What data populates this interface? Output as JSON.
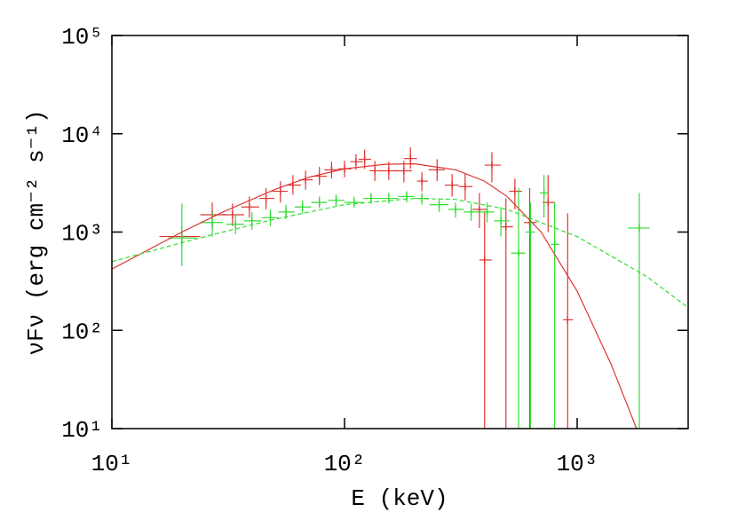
{
  "chart_data": {
    "type": "errorbar",
    "x_label": "E (keV)",
    "y_label": "νFν (erg cm⁻² s⁻¹)",
    "xlog": true,
    "ylog": true,
    "xlim": [
      10,
      3000
    ],
    "ylim": [
      10,
      100000
    ],
    "xticks": [
      {
        "value": 10,
        "label": "10¹"
      },
      {
        "value": 100,
        "label": "10²"
      },
      {
        "value": 1000,
        "label": "10³"
      }
    ],
    "yticks": [
      {
        "value": 10,
        "label": "10¹"
      },
      {
        "value": 100,
        "label": "10²"
      },
      {
        "value": 1000,
        "label": "10³"
      },
      {
        "value": 10000,
        "label": "10⁴"
      },
      {
        "value": 100000,
        "label": "10⁵"
      }
    ],
    "series": [
      {
        "kind": "points",
        "color": "#e03535",
        "x": [
          20,
          27,
          33,
          39,
          46,
          53,
          60,
          68,
          78,
          88,
          100,
          112,
          122,
          135,
          155,
          180,
          192,
          215,
          250,
          290,
          330,
          380,
          400,
          430,
          494,
          540,
          625,
          750,
          910
        ],
        "values": [
          900,
          1500,
          1500,
          1800,
          2200,
          2600,
          3000,
          3400,
          3700,
          4300,
          4400,
          5200,
          5500,
          4200,
          4200,
          4200,
          5600,
          3300,
          4300,
          3000,
          2900,
          1700,
          520,
          4800,
          1130,
          2600,
          1250,
          2000,
          128
        ],
        "x_low": [
          16,
          24,
          30,
          36,
          43,
          49,
          56,
          64,
          72,
          82,
          94,
          106,
          115,
          128,
          142,
          165,
          180,
          205,
          230,
          270,
          310,
          355,
          380,
          400,
          470,
          510,
          590,
          710,
          870
        ],
        "x_high": [
          24,
          31,
          37,
          43,
          50,
          57,
          65,
          73,
          84,
          95,
          107,
          120,
          130,
          145,
          170,
          195,
          205,
          228,
          270,
          310,
          355,
          410,
          430,
          470,
          530,
          580,
          670,
          800,
          960
        ],
        "y_low": [
          700,
          1100,
          1150,
          1400,
          1700,
          2000,
          2400,
          2700,
          3000,
          3500,
          3600,
          4300,
          4400,
          3300,
          3400,
          3200,
          4400,
          2600,
          3300,
          2300,
          2100,
          1100,
          1,
          3200,
          1,
          1700,
          1,
          1000,
          1
        ],
        "y_high": [
          1150,
          2000,
          1950,
          2300,
          2800,
          3300,
          3800,
          4200,
          4600,
          5200,
          5300,
          6200,
          6900,
          5300,
          5200,
          5300,
          7300,
          4100,
          5500,
          3900,
          3900,
          2500,
          1600,
          6500,
          2200,
          3500,
          2800,
          3800,
          1550
        ]
      },
      {
        "kind": "points",
        "color": "#33dd33",
        "x": [
          20,
          27,
          34,
          40,
          48,
          56,
          66,
          78,
          92,
          110,
          130,
          155,
          185,
          215,
          255,
          300,
          350,
          410,
          470,
          560,
          630,
          720,
          800,
          1850
        ],
        "values": [
          870,
          1250,
          1200,
          1300,
          1400,
          1600,
          1800,
          2000,
          2100,
          2000,
          2200,
          2200,
          2300,
          2200,
          1900,
          1700,
          1600,
          1600,
          1300,
          610,
          1000,
          2500,
          750,
          1100
        ],
        "x_low": [
          17.5,
          24,
          31,
          37,
          44,
          52,
          61,
          72,
          85,
          100,
          120,
          142,
          170,
          200,
          232,
          280,
          325,
          380,
          440,
          520,
          600,
          690,
          770,
          1650
        ],
        "x_high": [
          23,
          30,
          37,
          44,
          52,
          61,
          72,
          84,
          100,
          120,
          142,
          170,
          200,
          232,
          280,
          325,
          380,
          440,
          510,
          600,
          660,
          750,
          840,
          2050
        ],
        "y_low": [
          450,
          900,
          950,
          1050,
          1150,
          1350,
          1550,
          1750,
          1850,
          1750,
          1950,
          1950,
          2000,
          1900,
          1600,
          1400,
          1300,
          1250,
          900,
          1,
          1,
          1400,
          1,
          1
        ],
        "y_high": [
          1950,
          1600,
          1500,
          1600,
          1700,
          1900,
          2100,
          2300,
          2400,
          2300,
          2500,
          2500,
          2600,
          2500,
          2200,
          2000,
          1950,
          2000,
          1800,
          2800,
          2000,
          3800,
          2000,
          2500
        ]
      },
      {
        "kind": "line",
        "color": "#e03535",
        "dash": false,
        "x": [
          10,
          20,
          30,
          50,
          70,
          100,
          150,
          200,
          300,
          400,
          500,
          700,
          1000,
          1400,
          1800
        ],
        "values": [
          420,
          1000,
          1600,
          2700,
          3600,
          4400,
          4900,
          4950,
          4300,
          3300,
          2300,
          1000,
          250,
          45,
          10
        ]
      },
      {
        "kind": "line",
        "color": "#33dd33",
        "dash": true,
        "x": [
          10,
          20,
          30,
          50,
          100,
          200,
          300,
          500,
          1000,
          2000,
          3000
        ],
        "values": [
          500,
          780,
          1000,
          1350,
          1900,
          2200,
          2150,
          1700,
          900,
          350,
          170
        ]
      }
    ]
  }
}
